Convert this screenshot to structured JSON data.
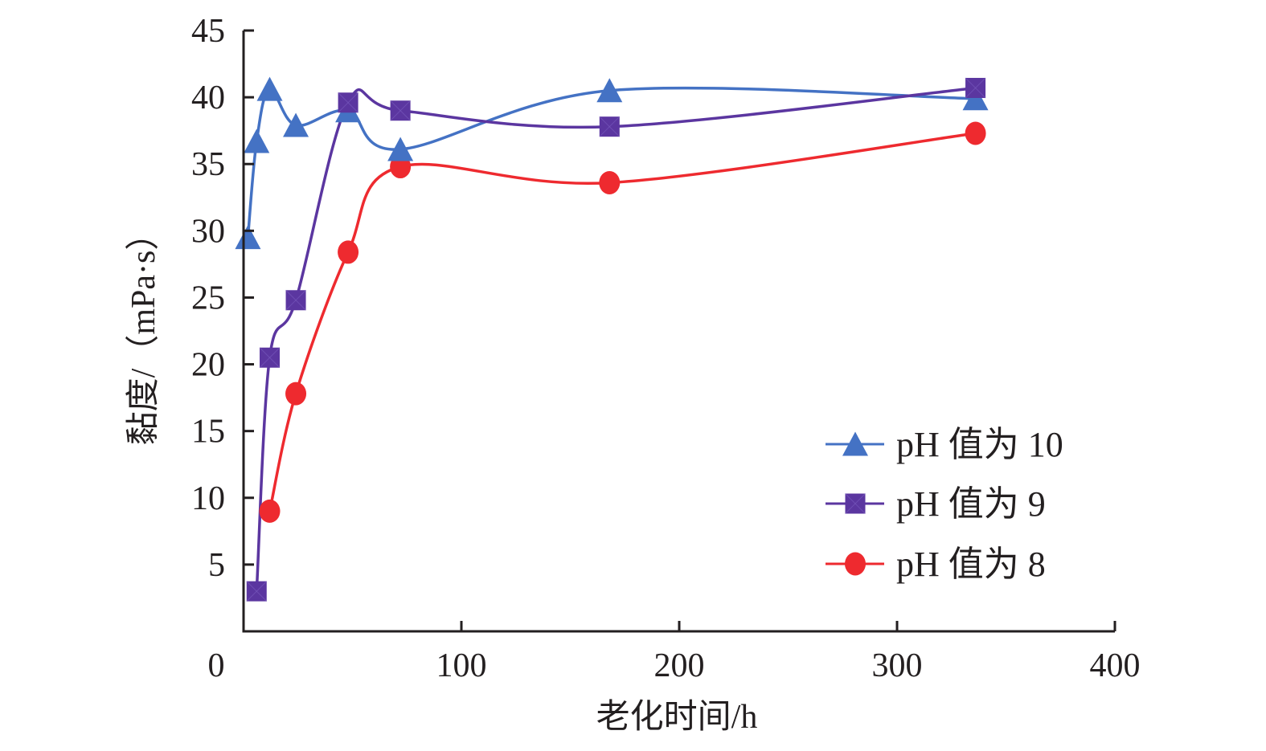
{
  "chart_data": {
    "type": "line",
    "title": "",
    "xlabel": "老化时间/h",
    "ylabel": "黏度/（mPa·s）",
    "xlim": [
      0,
      400
    ],
    "ylim": [
      0,
      45
    ],
    "xticks": [
      0,
      100,
      200,
      300,
      400
    ],
    "xtick_labels": [
      "0",
      "100",
      "200",
      "300",
      "400"
    ],
    "yticks": [
      5,
      10,
      15,
      20,
      25,
      30,
      35,
      40,
      45
    ],
    "ytick_labels": [
      "5",
      "10",
      "15",
      "20",
      "25",
      "30",
      "35",
      "40",
      "45"
    ],
    "grid": false,
    "smooth": true,
    "legend_position": "bottom-right",
    "series": [
      {
        "name": "pH 值为 10",
        "color": "#4472c4",
        "marker": "triangle",
        "x": [
          2,
          6,
          12,
          24,
          48,
          72,
          168,
          336
        ],
        "values": [
          29.5,
          36.7,
          40.6,
          37.9,
          39.0,
          36.1,
          40.5,
          39.9
        ]
      },
      {
        "name": "pH 值为 9",
        "color": "#5b36a0",
        "marker": "square",
        "x": [
          6,
          12,
          24,
          48,
          72,
          168,
          336
        ],
        "values": [
          3.0,
          20.5,
          24.8,
          39.6,
          39.0,
          37.8,
          40.7
        ]
      },
      {
        "name": "pH 值为 8",
        "color": "#ee2a2f",
        "marker": "circle",
        "x": [
          12,
          24,
          48,
          72,
          168,
          336
        ],
        "values": [
          9.0,
          17.8,
          28.4,
          34.8,
          33.6,
          37.3
        ]
      }
    ]
  }
}
